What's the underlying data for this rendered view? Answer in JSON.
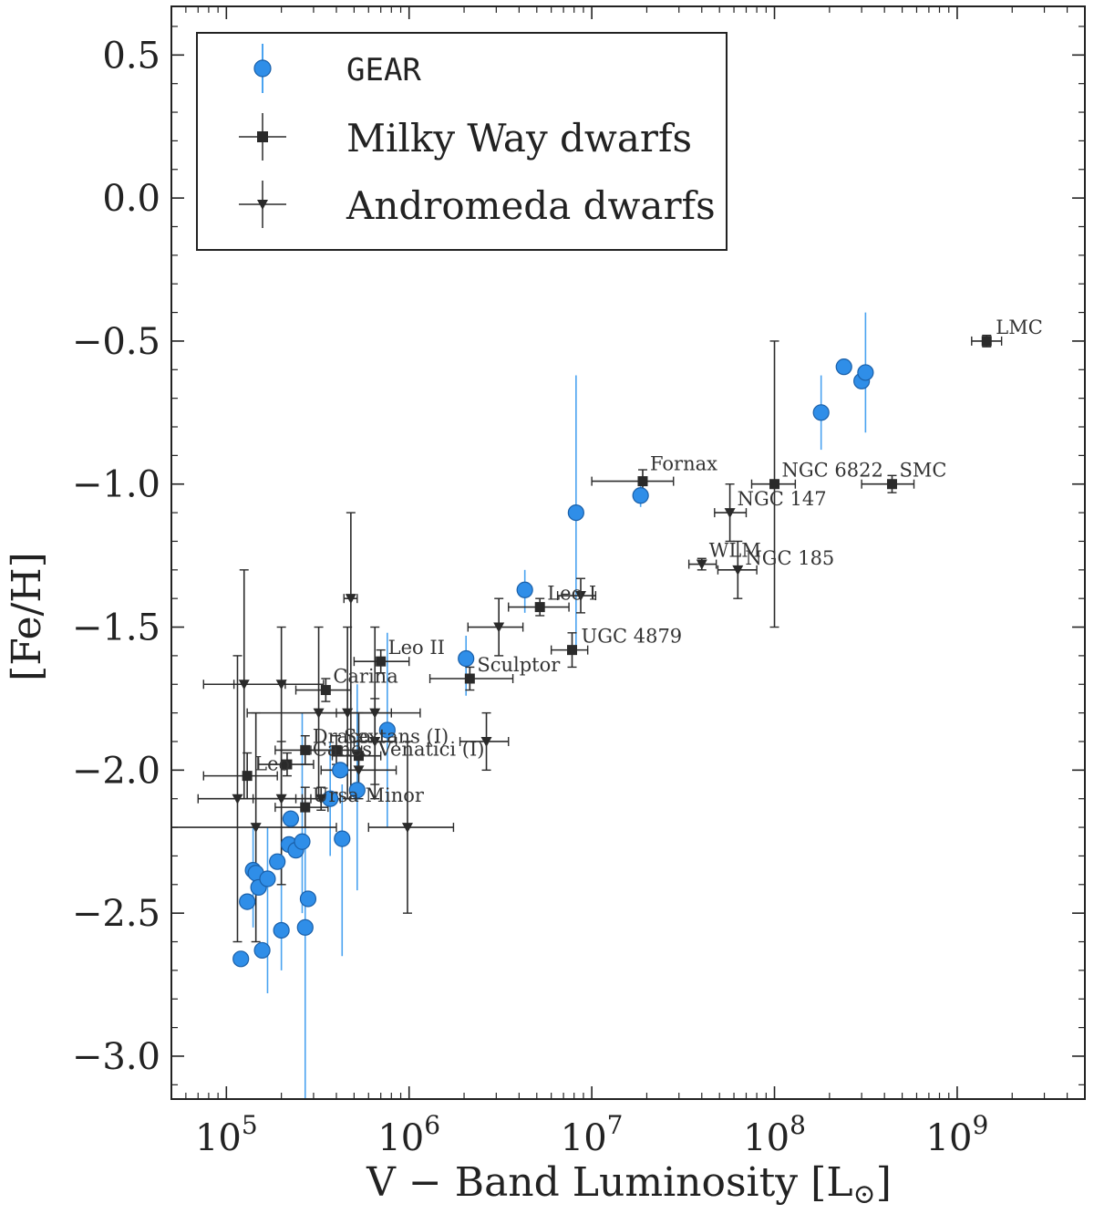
{
  "chart_data": {
    "type": "scatter",
    "xscale": "log",
    "xlim": [
      50000,
      5000000000
    ],
    "ylim": [
      -3.15,
      0.67
    ],
    "xlabel_main": "V − Band Luminosity [L",
    "xlabel_sun": "⊙",
    "xlabel_close": "]",
    "ylabel": "[Fe/H]",
    "yticks": [
      -3.0,
      -2.5,
      -2.0,
      -1.5,
      -1.0,
      -0.5,
      0.0,
      0.5
    ],
    "ytick_labels": [
      "−3.0",
      "−2.5",
      "−2.0",
      "−1.5",
      "−1.0",
      "−0.5",
      "0.0",
      "0.5"
    ],
    "xticks": [
      {
        "value": 100000,
        "base": "10",
        "exp": "5"
      },
      {
        "value": 1000000,
        "base": "10",
        "exp": "6"
      },
      {
        "value": 10000000,
        "base": "10",
        "exp": "7"
      },
      {
        "value": 100000000,
        "base": "10",
        "exp": "8"
      },
      {
        "value": 1000000000,
        "base": "10",
        "exp": "9"
      }
    ],
    "colors": {
      "gear": "#2f8ee8",
      "gear_edge": "#1a5fa8",
      "gear_err": "#4aa3f0",
      "obs": "#2a2a2a"
    },
    "legend": {
      "placement": "top-left",
      "entries": [
        {
          "label": "GEAR",
          "marker": "circle"
        },
        {
          "label": "Milky Way dwarfs",
          "marker": "square"
        },
        {
          "label": "Andromeda dwarfs",
          "marker": "triangle-down"
        }
      ]
    },
    "series": [
      {
        "name": "GEAR",
        "points": [
          {
            "x": 120000,
            "y": -2.66
          },
          {
            "x": 130000,
            "y": -2.46
          },
          {
            "x": 140000,
            "y": -2.35,
            "ylo": -2.55,
            "yhi": -2.2
          },
          {
            "x": 145000,
            "y": -2.36
          },
          {
            "x": 150000,
            "y": -2.41
          },
          {
            "x": 157000,
            "y": -2.63
          },
          {
            "x": 168000,
            "y": -2.38,
            "ylo": -2.78,
            "yhi": -2.2
          },
          {
            "x": 190000,
            "y": -2.32
          },
          {
            "x": 200000,
            "y": -2.56,
            "ylo": -2.7,
            "yhi": -2.3
          },
          {
            "x": 220000,
            "y": -2.26
          },
          {
            "x": 225000,
            "y": -2.17
          },
          {
            "x": 240000,
            "y": -2.28
          },
          {
            "x": 260000,
            "y": -2.25,
            "ylo": -2.5,
            "yhi": -1.8
          },
          {
            "x": 270000,
            "y": -2.55,
            "ylo": -3.2,
            "yhi": -2.2
          },
          {
            "x": 280000,
            "y": -2.45
          },
          {
            "x": 370000,
            "y": -2.1,
            "ylo": -2.3,
            "yhi": -1.9
          },
          {
            "x": 420000,
            "y": -2.0
          },
          {
            "x": 430000,
            "y": -2.24,
            "ylo": -2.65,
            "yhi": -2.05
          },
          {
            "x": 520000,
            "y": -2.07,
            "ylo": -2.42,
            "yhi": -1.7
          },
          {
            "x": 760000,
            "y": -1.86,
            "ylo": -2.2,
            "yhi": -1.52
          },
          {
            "x": 2050000,
            "y": -1.61,
            "ylo": -1.74,
            "yhi": -1.53
          },
          {
            "x": 4300000,
            "y": -1.37,
            "ylo": -1.45,
            "yhi": -1.3
          },
          {
            "x": 8200000,
            "y": -1.1,
            "ylo": -1.58,
            "yhi": -0.62
          },
          {
            "x": 18500000,
            "y": -1.04,
            "ylo": -1.08,
            "yhi": -1.0
          },
          {
            "x": 180000000,
            "y": -0.75,
            "ylo": -0.88,
            "yhi": -0.62
          },
          {
            "x": 240000000,
            "y": -0.59
          },
          {
            "x": 300000000,
            "y": -0.64
          },
          {
            "x": 315000000,
            "y": -0.61,
            "ylo": -0.82,
            "yhi": -0.4
          }
        ]
      },
      {
        "name": "Milky Way dwarfs",
        "points": [
          {
            "x": 130000,
            "y": -2.02,
            "xlo": 75000,
            "xhi": 190000,
            "ylo": -2.1,
            "yhi": -1.94
          },
          {
            "x": 215000,
            "y": -1.98,
            "xlo": 150000,
            "xhi": 300000,
            "ylo": -2.02,
            "yhi": -1.94
          },
          {
            "x": 270000,
            "y": -2.13,
            "xlo": 185000,
            "xhi": 360000,
            "ylo": -2.2,
            "yhi": -2.06
          },
          {
            "x": 270000,
            "y": -1.93,
            "xlo": 185000,
            "xhi": 380000,
            "ylo": -1.98,
            "yhi": -1.88
          },
          {
            "x": 350000,
            "y": -1.72,
            "xlo": 240000,
            "xhi": 480000,
            "ylo": -1.76,
            "yhi": -1.68
          },
          {
            "x": 400000,
            "y": -1.93,
            "xlo": 290000,
            "xhi": 550000,
            "ylo": -1.98,
            "yhi": -1.88
          },
          {
            "x": 530000,
            "y": -1.95,
            "xlo": 380000,
            "xhi": 700000,
            "ylo": -2.0,
            "yhi": -1.9
          },
          {
            "x": 700000,
            "y": -1.62,
            "xlo": 500000,
            "xhi": 1000000,
            "ylo": -1.66,
            "yhi": -1.58
          },
          {
            "x": 2150000,
            "y": -1.68,
            "xlo": 1300000,
            "xhi": 3700000,
            "ylo": -1.72,
            "yhi": -1.64
          },
          {
            "x": 5200000,
            "y": -1.43,
            "xlo": 3500000,
            "xhi": 7500000,
            "ylo": -1.46,
            "yhi": -1.4
          },
          {
            "x": 7800000,
            "y": -1.58,
            "xlo": 6000000,
            "xhi": 9500000,
            "ylo": -1.64,
            "yhi": -1.52
          },
          {
            "x": 19000000,
            "y": -0.99,
            "xlo": 10000000,
            "xhi": 28000000,
            "ylo": -1.03,
            "yhi": -0.95
          },
          {
            "x": 100000000,
            "y": -1.0,
            "xlo": 75000000,
            "xhi": 130000000,
            "ylo": -1.5,
            "yhi": -0.5
          },
          {
            "x": 440000000,
            "y": -1.0,
            "xlo": 300000000,
            "xhi": 580000000,
            "ylo": -1.03,
            "yhi": -0.97
          },
          {
            "x": 1450000000,
            "y": -0.5,
            "xlo": 1200000000,
            "xhi": 1750000000,
            "ylo": -0.52,
            "yhi": -0.48
          }
        ]
      },
      {
        "name": "Andromeda dwarfs",
        "points": [
          {
            "x": 115000,
            "y": -2.1,
            "xlo": 70000,
            "xhi": 240000,
            "ylo": -2.6,
            "yhi": -1.6
          },
          {
            "x": 125000,
            "y": -1.7,
            "xlo": 75000,
            "xhi": 210000,
            "ylo": -2.1,
            "yhi": -1.3
          },
          {
            "x": 145000,
            "y": -2.2,
            "xlo": 40000,
            "xhi": 400000,
            "ylo": -2.6,
            "yhi": -1.8
          },
          {
            "x": 200000,
            "y": -1.7,
            "xlo": 110000,
            "xhi": 340000,
            "ylo": -2.1,
            "yhi": -1.5
          },
          {
            "x": 200000,
            "y": -2.1,
            "xlo": 140000,
            "xhi": 290000,
            "ylo": -2.4,
            "yhi": -1.9
          },
          {
            "x": 320000,
            "y": -1.8,
            "xlo": 130000,
            "xhi": 800000,
            "ylo": -2.1,
            "yhi": -1.5
          },
          {
            "x": 330000,
            "y": -2.1,
            "xlo": 260000,
            "xhi": 420000,
            "ylo": -2.14,
            "yhi": -2.06
          },
          {
            "x": 460000,
            "y": -1.8,
            "xlo": 320000,
            "xhi": 650000,
            "ylo": -2.1,
            "yhi": -1.5
          },
          {
            "x": 480000,
            "y": -1.4,
            "xlo": 440000,
            "xhi": 520000,
            "ylo": -2.1,
            "yhi": -1.1
          },
          {
            "x": 530000,
            "y": -2.0,
            "xlo": 330000,
            "xhi": 850000,
            "ylo": -2.1,
            "yhi": -1.8
          },
          {
            "x": 650000,
            "y": -1.8,
            "xlo": 400000,
            "xhi": 1150000,
            "ylo": -2.1,
            "yhi": -1.5
          },
          {
            "x": 650000,
            "y": -1.9,
            "xlo": 500000,
            "xhi": 850000,
            "ylo": -2.05,
            "yhi": -1.75
          },
          {
            "x": 980000,
            "y": -2.2,
            "xlo": 600000,
            "xhi": 1750000,
            "ylo": -2.5,
            "yhi": -1.9
          },
          {
            "x": 3100000,
            "y": -1.5,
            "xlo": 2100000,
            "xhi": 4200000,
            "ylo": -1.6,
            "yhi": -1.4
          },
          {
            "x": 2650000,
            "y": -1.9,
            "xlo": 1900000,
            "xhi": 3500000,
            "ylo": -2.0,
            "yhi": -1.8
          },
          {
            "x": 8700000,
            "y": -1.39,
            "xlo": 6500000,
            "xhi": 10500000,
            "ylo": -1.45,
            "yhi": -1.33
          },
          {
            "x": 40000000,
            "y": -1.28,
            "xlo": 34000000,
            "xhi": 48000000,
            "ylo": -1.3,
            "yhi": -1.26
          },
          {
            "x": 57000000,
            "y": -1.1,
            "xlo": 47000000,
            "xhi": 70000000,
            "ylo": -1.2,
            "yhi": -1.0
          },
          {
            "x": 63000000,
            "y": -1.3,
            "xlo": 49000000,
            "xhi": 80000000,
            "ylo": -1.4,
            "yhi": -1.2
          }
        ]
      }
    ],
    "annotations": [
      {
        "text": "LMC",
        "x": 1450000000,
        "y": -0.5,
        "dx": 10,
        "dy": -8
      },
      {
        "text": "Fornax",
        "x": 19000000,
        "y": -0.99,
        "dx": 8,
        "dy": -12
      },
      {
        "text": "NGC 6822",
        "x": 100000000,
        "y": -1.0,
        "dx": 8,
        "dy": -8
      },
      {
        "text": "SMC",
        "x": 440000000,
        "y": -1.0,
        "dx": 8,
        "dy": -8
      },
      {
        "text": "NGC 147",
        "x": 57000000,
        "y": -1.1,
        "dx": 8,
        "dy": -8
      },
      {
        "text": "WLM",
        "x": 40000000,
        "y": -1.28,
        "dx": 8,
        "dy": -8
      },
      {
        "text": "NGC 185",
        "x": 63000000,
        "y": -1.3,
        "dx": 8,
        "dy": -6
      },
      {
        "text": "Leo I",
        "x": 5200000,
        "y": -1.43,
        "dx": 8,
        "dy": -8
      },
      {
        "text": "UGC 4879",
        "x": 7800000,
        "y": -1.58,
        "dx": 10,
        "dy": -8
      },
      {
        "text": "Leo II",
        "x": 700000,
        "y": -1.62,
        "dx": 8,
        "dy": -8
      },
      {
        "text": "Sculptor",
        "x": 2150000,
        "y": -1.68,
        "dx": 8,
        "dy": -8
      },
      {
        "text": "Carina",
        "x": 350000,
        "y": -1.72,
        "dx": 8,
        "dy": -8
      },
      {
        "text": "Draco",
        "x": 270000,
        "y": -1.93,
        "dx": 8,
        "dy": -8
      },
      {
        "text": "Sextans (I)",
        "x": 400000,
        "y": -1.93,
        "dx": 8,
        "dy": -8
      },
      {
        "text": "Canes Venatici (I)",
        "x": 270000,
        "y": -1.93,
        "dx": 8,
        "dy": 6
      },
      {
        "text": "Leo",
        "x": 130000,
        "y": -2.02,
        "dx": 8,
        "dy": -6
      },
      {
        "text": "Ursa Minor",
        "x": 270000,
        "y": -2.13,
        "dx": 8,
        "dy": -6
      }
    ]
  }
}
